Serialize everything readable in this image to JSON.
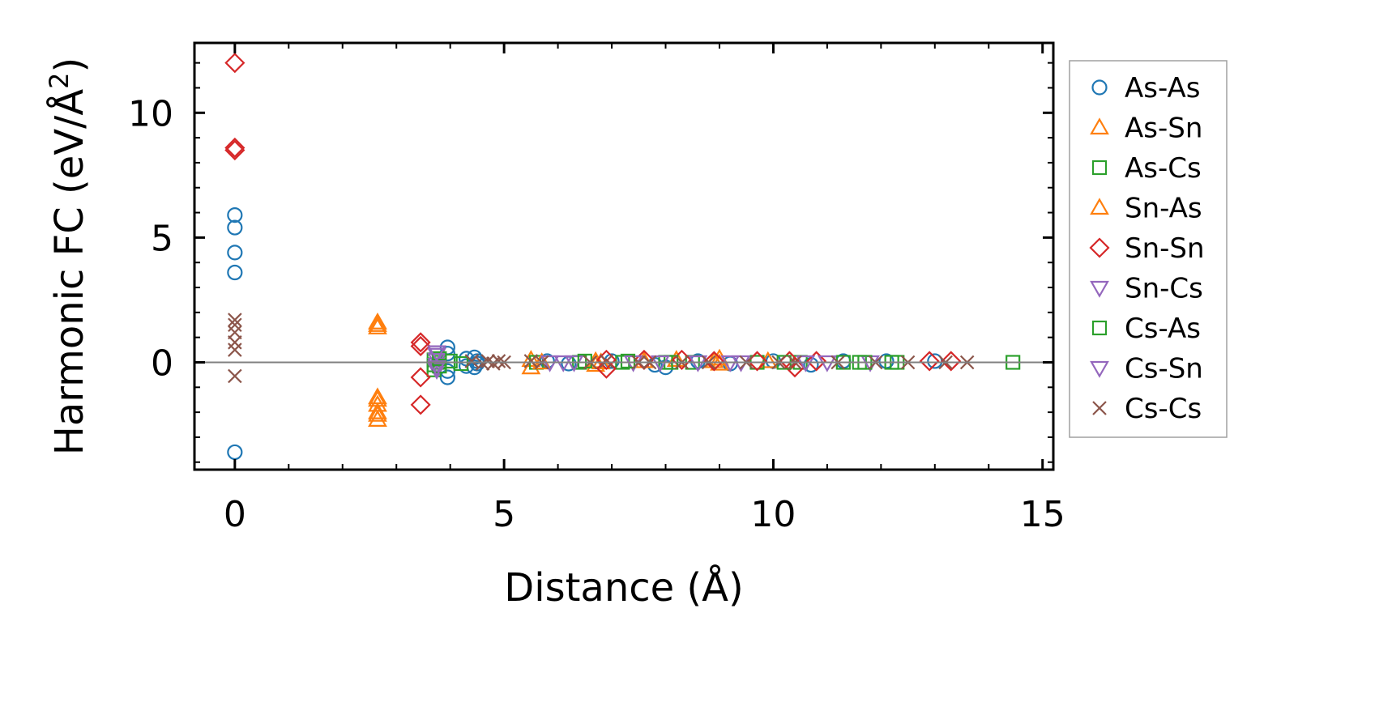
{
  "chart_data": {
    "type": "scatter",
    "title": "",
    "xlabel": "Distance (Å)",
    "ylabel_main": "Harmonic FC (eV/Å",
    "ylabel_sup": "2",
    "ylabel_close": ")",
    "xlim": [
      -0.75,
      15.2
    ],
    "ylim": [
      -4.3,
      12.8
    ],
    "xticks": [
      0,
      5,
      10,
      15
    ],
    "yticks": [
      0,
      5,
      10
    ],
    "xtick_labels": [
      "0",
      "5",
      "10",
      "15"
    ],
    "ytick_labels": [
      "0",
      "5",
      "10"
    ],
    "zero_line": true,
    "grid": false,
    "legend_position": "right, outside plot",
    "series": [
      {
        "name": "As-As",
        "marker": "circle",
        "color": "#1f77b4",
        "points": [
          [
            0,
            5.9
          ],
          [
            0,
            5.4
          ],
          [
            0,
            4.4
          ],
          [
            0,
            3.6
          ],
          [
            0,
            -3.6
          ],
          [
            3.95,
            0.6
          ],
          [
            3.95,
            -0.6
          ],
          [
            3.95,
            -0.35
          ],
          [
            3.95,
            0.35
          ],
          [
            4.3,
            0.15
          ],
          [
            4.3,
            -0.15
          ],
          [
            4.45,
            0.2
          ],
          [
            4.45,
            -0.2
          ],
          [
            4.5,
            0.05
          ],
          [
            4.5,
            -0.05
          ],
          [
            5.8,
            0.05
          ],
          [
            6.2,
            -0.05
          ],
          [
            7.0,
            0.05
          ],
          [
            7.8,
            -0.1
          ],
          [
            8.0,
            -0.2
          ],
          [
            8.6,
            0.05
          ],
          [
            9.2,
            -0.05
          ],
          [
            10.0,
            0.05
          ],
          [
            10.7,
            -0.1
          ],
          [
            11.3,
            0.05
          ],
          [
            12.1,
            0.05
          ],
          [
            13.0,
            0.05
          ]
        ]
      },
      {
        "name": "As-Sn",
        "marker": "triangle-up",
        "color": "#ff7f0e",
        "points": [
          [
            2.65,
            1.6
          ],
          [
            2.65,
            1.4
          ],
          [
            2.65,
            -1.4
          ],
          [
            2.65,
            -1.7
          ],
          [
            2.65,
            -2.0
          ],
          [
            2.65,
            -2.3
          ],
          [
            5.5,
            0.1
          ],
          [
            5.5,
            -0.2
          ],
          [
            6.7,
            0.05
          ],
          [
            6.7,
            -0.1
          ],
          [
            7.6,
            0.05
          ],
          [
            8.2,
            0.1
          ],
          [
            9.0,
            0.15
          ],
          [
            9.0,
            -0.05
          ],
          [
            9.9,
            0.05
          ]
        ]
      },
      {
        "name": "As-Cs",
        "marker": "square",
        "color": "#2ca02c",
        "points": [
          [
            3.7,
            0.1
          ],
          [
            3.7,
            -0.1
          ],
          [
            3.7,
            -0.3
          ],
          [
            3.8,
            0.0
          ],
          [
            4.0,
            0.05
          ],
          [
            4.2,
            -0.05
          ],
          [
            5.6,
            0.0
          ],
          [
            6.4,
            0.0
          ],
          [
            7.2,
            0.0
          ],
          [
            8.0,
            0.0
          ],
          [
            8.5,
            0.0
          ],
          [
            9.7,
            0.0
          ],
          [
            10.5,
            0.0
          ],
          [
            11.3,
            0.0
          ],
          [
            11.6,
            0.0
          ],
          [
            12.2,
            0.0
          ],
          [
            14.45,
            0.0
          ]
        ]
      },
      {
        "name": "Sn-As",
        "marker": "triangle-up",
        "color": "#ff7f0e",
        "points": [
          [
            2.65,
            1.5
          ],
          [
            2.65,
            -1.5
          ],
          [
            2.65,
            -2.1
          ],
          [
            5.7,
            0.0
          ],
          [
            6.8,
            0.0
          ],
          [
            8.9,
            0.05
          ]
        ]
      },
      {
        "name": "Sn-Sn",
        "marker": "diamond",
        "color": "#d62728",
        "points": [
          [
            0,
            12.0
          ],
          [
            0,
            8.6
          ],
          [
            0,
            8.5
          ],
          [
            3.45,
            0.8
          ],
          [
            3.45,
            0.65
          ],
          [
            3.45,
            -0.6
          ],
          [
            3.45,
            -1.7
          ],
          [
            6.9,
            0.1
          ],
          [
            6.9,
            -0.25
          ],
          [
            7.6,
            0.1
          ],
          [
            8.3,
            0.1
          ],
          [
            8.9,
            0.05
          ],
          [
            9.7,
            0.05
          ],
          [
            10.3,
            0.05
          ],
          [
            10.4,
            -0.2
          ],
          [
            10.8,
            0.05
          ],
          [
            12.9,
            0.05
          ],
          [
            13.3,
            0.05
          ]
        ]
      },
      {
        "name": "Sn-Cs",
        "marker": "triangle-down",
        "color": "#9467bd",
        "points": [
          [
            3.75,
            0.3
          ],
          [
            3.75,
            0.1
          ],
          [
            3.75,
            -0.1
          ],
          [
            3.75,
            -0.3
          ],
          [
            5.85,
            0.0
          ],
          [
            6.3,
            0.0
          ],
          [
            7.4,
            0.0
          ],
          [
            8.6,
            0.0
          ],
          [
            9.4,
            0.0
          ],
          [
            10.6,
            0.0
          ],
          [
            11.8,
            0.0
          ]
        ]
      },
      {
        "name": "Cs-As",
        "marker": "square",
        "color": "#2ca02c",
        "points": [
          [
            3.8,
            0.15
          ],
          [
            3.8,
            -0.15
          ],
          [
            6.5,
            0.05
          ],
          [
            7.3,
            0.05
          ],
          [
            8.1,
            0.0
          ],
          [
            10.2,
            0.0
          ],
          [
            11.7,
            0.0
          ],
          [
            12.3,
            0.0
          ]
        ]
      },
      {
        "name": "Cs-Sn",
        "marker": "triangle-down",
        "color": "#9467bd",
        "points": [
          [
            3.75,
            0.4
          ],
          [
            3.75,
            -0.2
          ],
          [
            6.1,
            0.0
          ],
          [
            7.9,
            0.0
          ],
          [
            9.2,
            0.0
          ],
          [
            11.0,
            0.0
          ]
        ]
      },
      {
        "name": "Cs-Cs",
        "marker": "x",
        "color": "#8c564b",
        "points": [
          [
            0,
            1.7
          ],
          [
            0,
            1.5
          ],
          [
            0,
            1.2
          ],
          [
            0,
            0.8
          ],
          [
            0,
            0.5
          ],
          [
            0,
            -0.55
          ],
          [
            4.4,
            0.05
          ],
          [
            4.6,
            -0.05
          ],
          [
            4.7,
            0.05
          ],
          [
            4.8,
            -0.05
          ],
          [
            4.9,
            0.05
          ],
          [
            5.0,
            0.0
          ],
          [
            5.5,
            0.05
          ],
          [
            5.7,
            0.0
          ],
          [
            6.6,
            0.0
          ],
          [
            6.9,
            0.05
          ],
          [
            7.5,
            0.0
          ],
          [
            7.7,
            0.0
          ],
          [
            8.3,
            0.0
          ],
          [
            8.8,
            0.0
          ],
          [
            9.5,
            0.0
          ],
          [
            10.1,
            0.0
          ],
          [
            10.4,
            0.0
          ],
          [
            11.2,
            0.0
          ],
          [
            11.9,
            0.0
          ],
          [
            12.5,
            0.0
          ],
          [
            13.2,
            0.0
          ],
          [
            13.6,
            0.0
          ]
        ]
      }
    ]
  }
}
